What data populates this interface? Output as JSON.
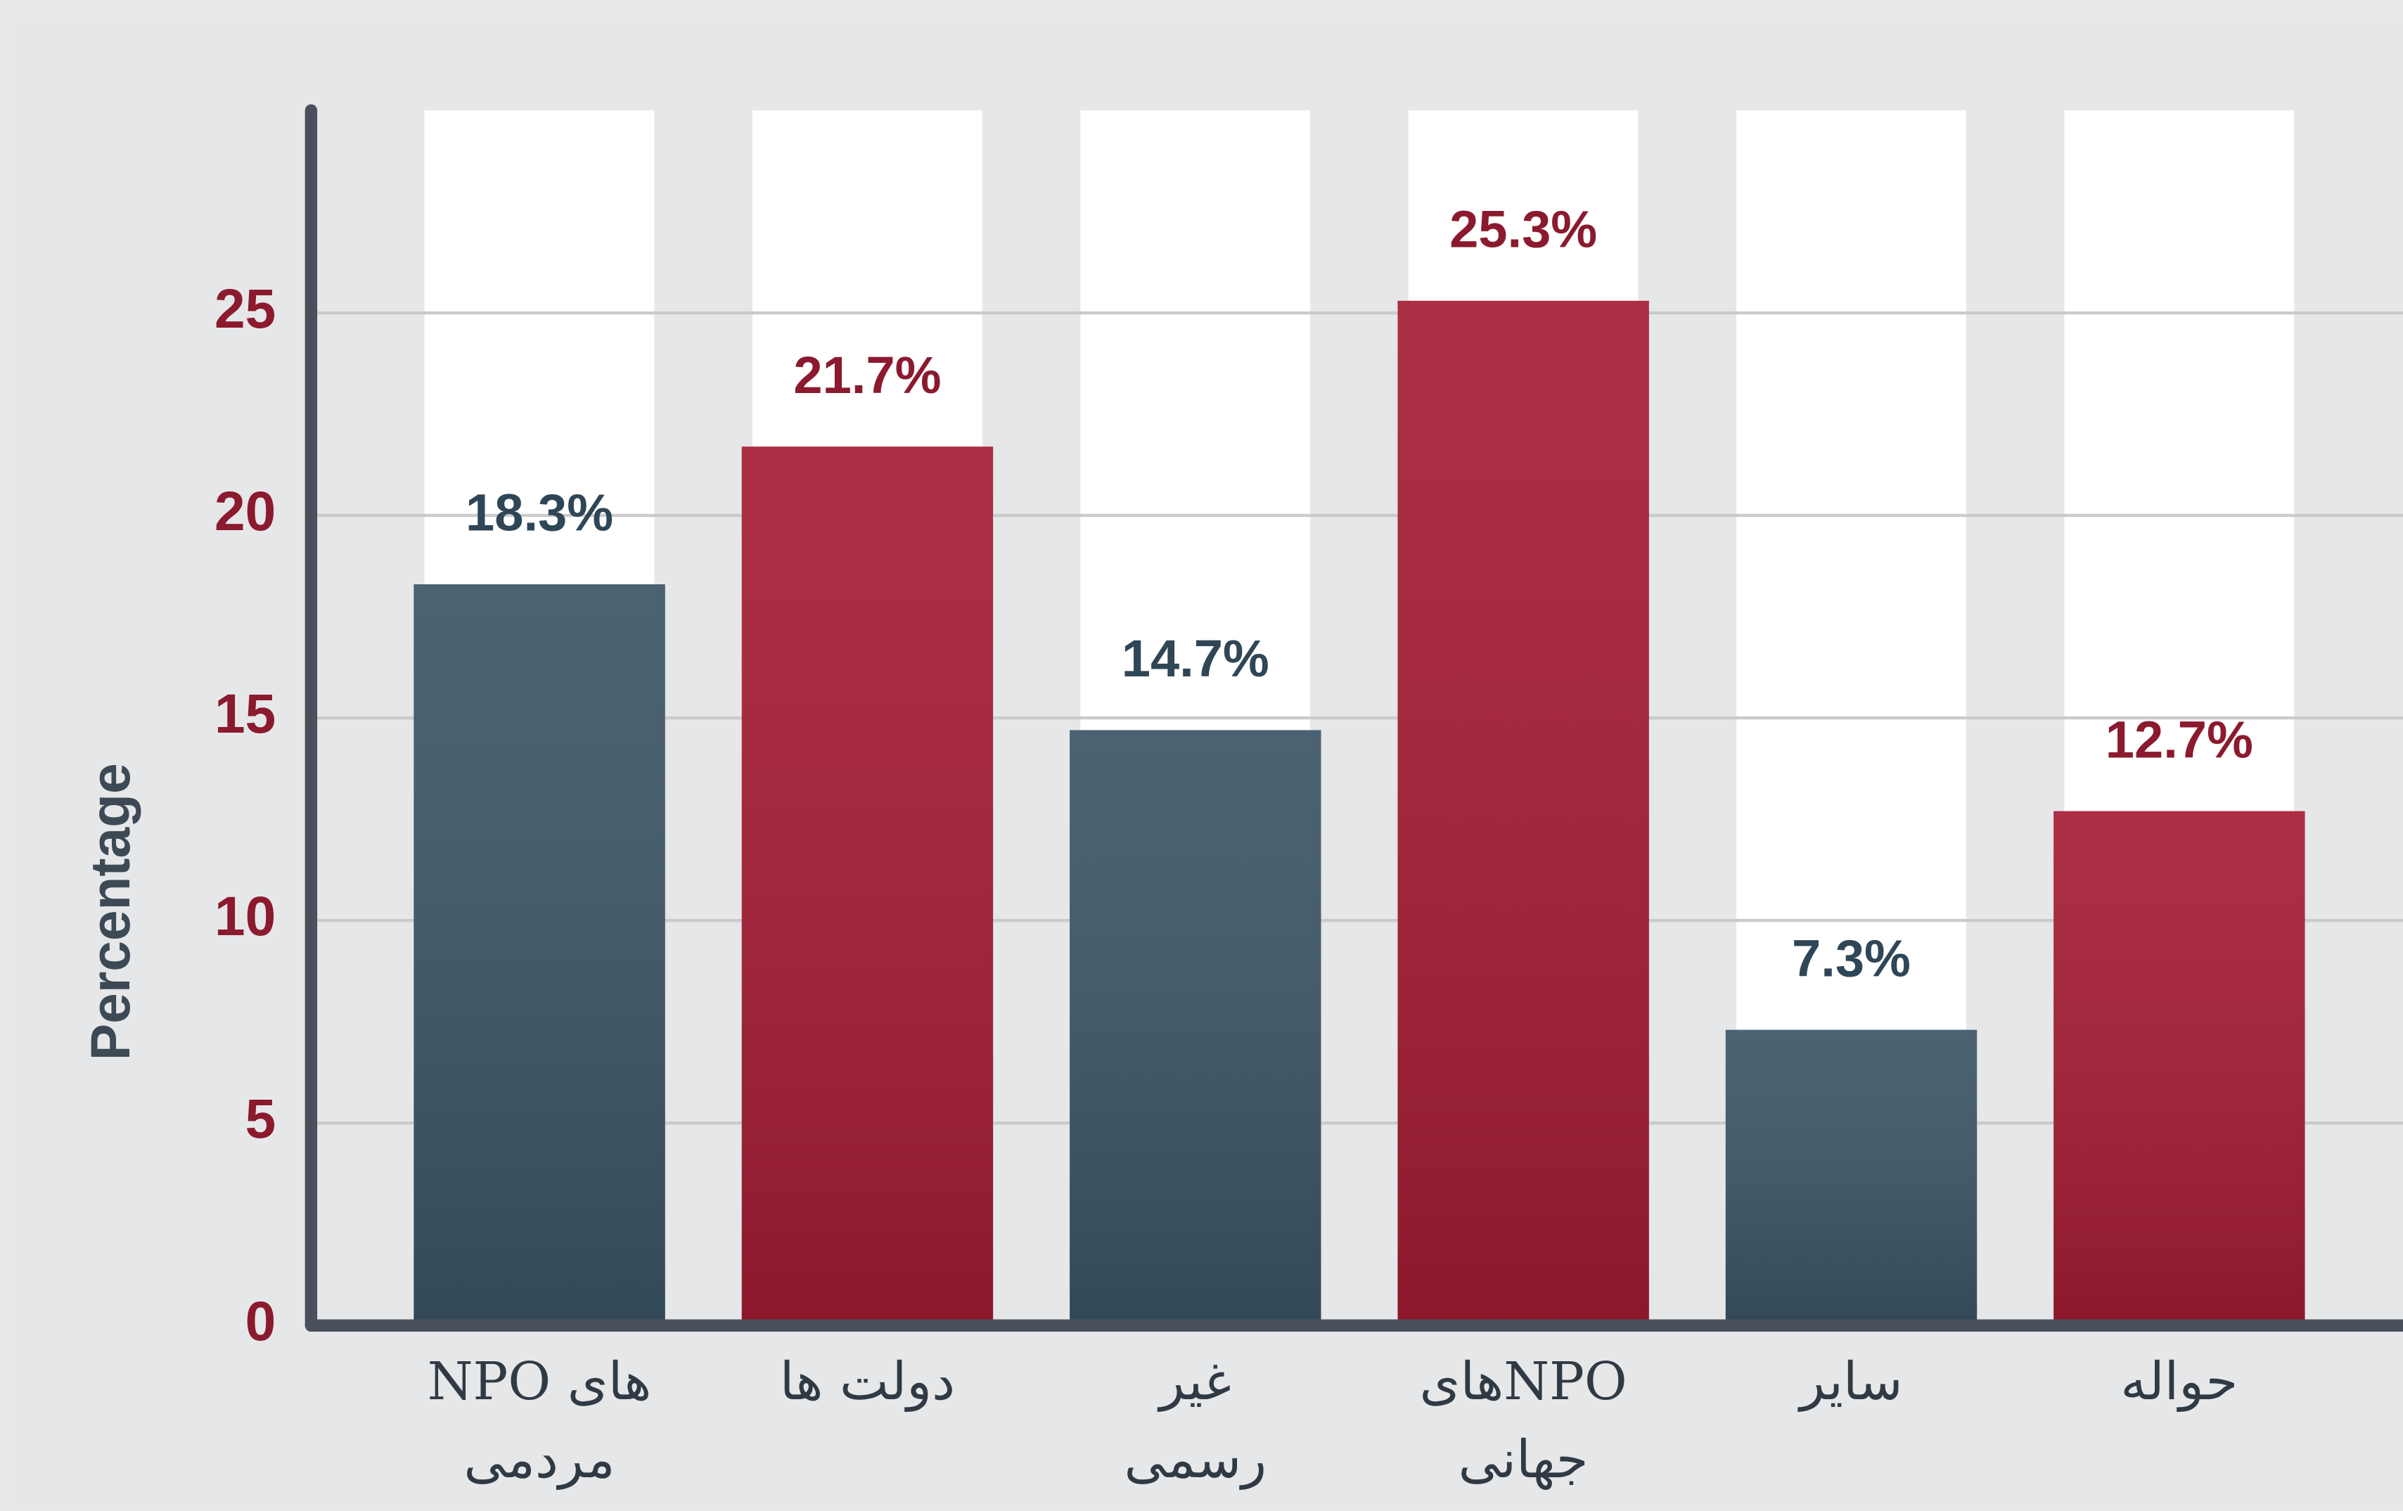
{
  "chart_data": {
    "type": "bar",
    "y_label": "Percentage",
    "categories": [
      "های NPO مردمی",
      "دولت ها",
      "غیر رسمی",
      "NPOهای جهانی",
      "سایر",
      "حواله"
    ],
    "values": [
      18.3,
      21.7,
      14.7,
      25.3,
      7.3,
      12.7
    ],
    "value_labels": [
      "18.3%",
      "21.7%",
      "14.7%",
      "25.3%",
      "7.3%",
      "12.7%"
    ],
    "colors": [
      "#3a5566",
      "#a51c34",
      "#3a5566",
      "#a51c34",
      "#3a5566",
      "#a51c34"
    ],
    "ylim": [
      0,
      30
    ],
    "yticks": [
      0,
      5,
      10,
      15,
      20,
      25
    ],
    "grid": true
  }
}
